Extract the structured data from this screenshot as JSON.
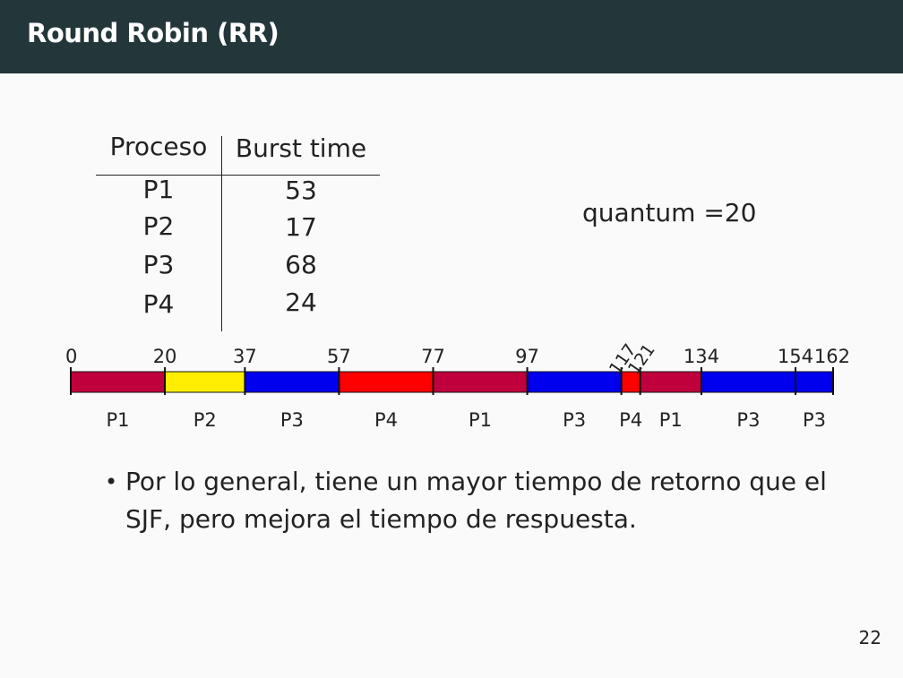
{
  "slide": {
    "title": "Round Robin (RR)",
    "page_number": "22"
  },
  "table": {
    "headers": [
      "Proceso",
      "Burst time"
    ],
    "rows": [
      {
        "proceso": "P1",
        "burst": "53"
      },
      {
        "proceso": "P2",
        "burst": "17"
      },
      {
        "proceso": "P3",
        "burst": "68"
      },
      {
        "proceso": "P4",
        "burst": "24"
      }
    ]
  },
  "quantum_text": "quantum =20",
  "gantt": {
    "start_label": "0",
    "segments": [
      {
        "process": "P1",
        "start": 0,
        "end": 20,
        "end_label": "20",
        "color": "#c0003c"
      },
      {
        "process": "P2",
        "start": 20,
        "end": 37,
        "end_label": "37",
        "color": "#ffee00"
      },
      {
        "process": "P3",
        "start": 37,
        "end": 57,
        "end_label": "57",
        "color": "#0000ee"
      },
      {
        "process": "P4",
        "start": 57,
        "end": 77,
        "end_label": "77",
        "color": "#ff0000"
      },
      {
        "process": "P1",
        "start": 77,
        "end": 97,
        "end_label": "97",
        "color": "#c0003c"
      },
      {
        "process": "P3",
        "start": 97,
        "end": 117,
        "end_label": "117",
        "color": "#0000ee"
      },
      {
        "process": "P4",
        "start": 117,
        "end": 121,
        "end_label": "121",
        "color": "#ff0000"
      },
      {
        "process": "P1",
        "start": 121,
        "end": 134,
        "end_label": "134",
        "color": "#c0003c"
      },
      {
        "process": "P3",
        "start": 134,
        "end": 154,
        "end_label": "154",
        "color": "#0000ee"
      },
      {
        "process": "P3",
        "start": 154,
        "end": 162,
        "end_label": "162",
        "color": "#0000ee"
      }
    ]
  },
  "bullet": "Por lo general, tiene un mayor tiempo de retorno que el SJF, pero mejora el tiempo de respuesta.",
  "bullet_marker": "•"
}
